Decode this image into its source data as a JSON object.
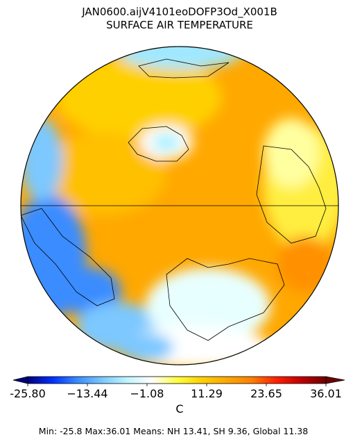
{
  "header": {
    "title": "JAN0600.aijV4101eoDOFP3Od_X001B",
    "subtitle": "SURFACE AIR TEMPERATURE"
  },
  "colorbar": {
    "colors": [
      "#00007f",
      "#0030ff",
      "#3a8cff",
      "#7cc8ff",
      "#c0f4ff",
      "#ffffff",
      "#ffff40",
      "#ffd000",
      "#ffa800",
      "#ff8000",
      "#ff2000",
      "#c00000",
      "#6e0000"
    ],
    "ticks": [
      {
        "value": -25.8,
        "label": "-25.80"
      },
      {
        "value": -13.44,
        "label": "−13.44"
      },
      {
        "value": -1.08,
        "label": "−1.08"
      },
      11.29,
      23.65,
      36.01
    ],
    "unit": "C"
  },
  "footer": "Min: -25.8  Max:36.01  Means: NH 13.41,  SH 9.36, Global 11.38"
}
